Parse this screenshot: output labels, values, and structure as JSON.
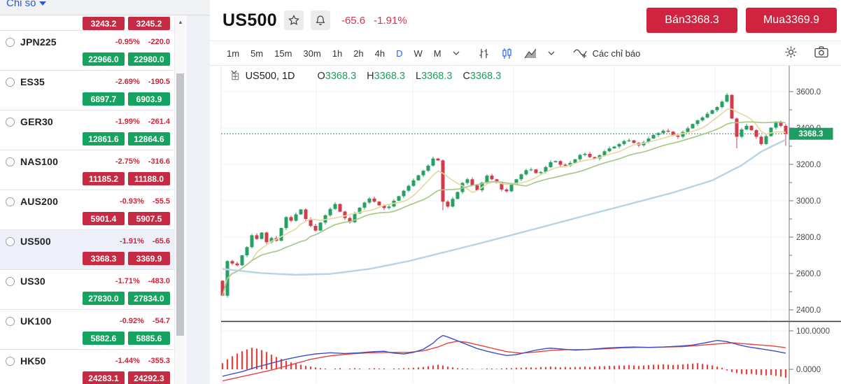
{
  "watchlist": {
    "header": {
      "label": "Chỉ số"
    },
    "partial_row": {
      "bid": "3243.2",
      "ask": "3245.2",
      "trend": "down"
    },
    "items": [
      {
        "symbol": "JPN225",
        "change_pct": "-0.95%",
        "change": "-220.0",
        "bid": "22966.0",
        "ask": "22980.0",
        "trend": "up",
        "selected": false
      },
      {
        "symbol": "ES35",
        "change_pct": "-2.69%",
        "change": "-190.5",
        "bid": "6897.7",
        "ask": "6903.9",
        "trend": "up",
        "selected": false
      },
      {
        "symbol": "GER30",
        "change_pct": "-1.99%",
        "change": "-261.4",
        "bid": "12861.6",
        "ask": "12864.6",
        "trend": "up",
        "selected": false
      },
      {
        "symbol": "NAS100",
        "change_pct": "-2.75%",
        "change": "-316.6",
        "bid": "11185.2",
        "ask": "11188.0",
        "trend": "down",
        "selected": false
      },
      {
        "symbol": "AUS200",
        "change_pct": "-0.93%",
        "change": "-55.5",
        "bid": "5901.4",
        "ask": "5907.5",
        "trend": "down",
        "selected": false
      },
      {
        "symbol": "US500",
        "change_pct": "-1.91%",
        "change": "-65.6",
        "bid": "3368.3",
        "ask": "3369.9",
        "trend": "down",
        "selected": true
      },
      {
        "symbol": "US30",
        "change_pct": "-1.71%",
        "change": "-483.0",
        "bid": "27830.0",
        "ask": "27834.0",
        "trend": "up",
        "selected": false
      },
      {
        "symbol": "UK100",
        "change_pct": "-0.92%",
        "change": "-54.7",
        "bid": "5882.6",
        "ask": "5885.6",
        "trend": "up",
        "selected": false
      },
      {
        "symbol": "HK50",
        "change_pct": "-1.44%",
        "change": "-355.3",
        "bid": "24283.1",
        "ask": "24292.3",
        "trend": "down",
        "selected": false
      }
    ]
  },
  "header": {
    "symbol": "US500",
    "change": "-65.6",
    "change_pct": "-1.91%",
    "sell_label": "Bán",
    "sell_price": "3368.3",
    "buy_label": "Mua",
    "buy_price": "3369.9"
  },
  "toolbar": {
    "timeframes": [
      "1m",
      "5m",
      "15m",
      "30m",
      "1h",
      "2h",
      "4h",
      "D",
      "W",
      "M"
    ],
    "active_timeframe": "D",
    "indicators_label": "Các chỉ báo"
  },
  "legend": {
    "symbol_text": "US500, 1D",
    "ohlc": [
      {
        "label": "O",
        "value": "3368.3"
      },
      {
        "label": "H",
        "value": "3368.3"
      },
      {
        "label": "L",
        "value": "3368.3"
      },
      {
        "label": "C",
        "value": "3368.3"
      }
    ]
  },
  "chart_data": {
    "type": "candlestick",
    "symbol": "US500",
    "timeframe": "1D",
    "price_axis": {
      "tick_labels": [
        "3600.0",
        "3400.0",
        "3200.0",
        "3000.0",
        "2800.0",
        "2600.0",
        "2400.0"
      ],
      "minor_step": 100,
      "min": 2400,
      "max": 3600
    },
    "last_price": 3368.3,
    "last_price_label": "3368.3",
    "first_open": 2560,
    "closes": [
      2478,
      2668,
      2655,
      2645,
      2700,
      2745,
      2810,
      2790,
      2825,
      2772,
      2795,
      2780,
      2850,
      2910,
      2890,
      2925,
      2952,
      2900,
      2862,
      2836,
      2880,
      2920,
      2955,
      2982,
      2940,
      2905,
      2882,
      2930,
      2962,
      2990,
      3012,
      2995,
      2975,
      2960,
      2968,
      3000,
      3025,
      3055,
      3082,
      3112,
      3140,
      3165,
      3193,
      3232,
      3222,
      2995,
      2968,
      3010,
      3048,
      3098,
      3118,
      3085,
      3058,
      3100,
      3138,
      3118,
      3098,
      3062,
      3052,
      3088,
      3118,
      3145,
      3168,
      3172,
      3152,
      3158,
      3185,
      3212,
      3218,
      3198,
      3192,
      3208,
      3228,
      3252,
      3258,
      3240,
      3232,
      3250,
      3272,
      3288,
      3298,
      3312,
      3328,
      3332,
      3318,
      3305,
      3322,
      3342,
      3362,
      3372,
      3385,
      3380,
      3358,
      3352,
      3378,
      3398,
      3422,
      3442,
      3458,
      3478,
      3498,
      3515,
      3545,
      3582,
      3452,
      3352,
      3392,
      3412,
      3388,
      3352,
      3312,
      3355,
      3402,
      3432,
      3412,
      3368.3
    ],
    "overrides": {
      "45": {
        "low": 2948
      },
      "105": {
        "low": 3288
      },
      "115": {
        "low": 3302
      }
    },
    "moving_averages": [
      {
        "name": "ma-short",
        "period": 7,
        "color": "#e8d9a3"
      },
      {
        "name": "ma-mid",
        "period": 18,
        "color": "#a9c98a"
      },
      {
        "name": "ma-long",
        "color": "#b7d3e6",
        "points": [
          [
            0,
            2625
          ],
          [
            8,
            2602
          ],
          [
            15,
            2592
          ],
          [
            22,
            2598
          ],
          [
            30,
            2625
          ],
          [
            38,
            2668
          ],
          [
            45,
            2715
          ],
          [
            52,
            2762
          ],
          [
            60,
            2818
          ],
          [
            68,
            2875
          ],
          [
            76,
            2932
          ],
          [
            84,
            2988
          ],
          [
            92,
            3045
          ],
          [
            100,
            3112
          ],
          [
            106,
            3195
          ],
          [
            110,
            3270
          ],
          [
            113,
            3310
          ],
          [
            115,
            3335
          ]
        ]
      }
    ],
    "indicator": {
      "tick_labels": [
        "100.0000",
        "0.0000"
      ],
      "range": [
        0,
        100
      ],
      "histogram_color": "#e8413e",
      "fast_color": "#3f4ec7",
      "slow_color": "#e84141",
      "histogram": [
        16,
        26,
        34,
        41,
        47,
        52,
        56,
        54,
        50,
        45,
        38,
        32,
        27,
        22,
        18,
        15,
        12,
        9,
        7,
        5,
        3,
        2,
        0,
        2,
        3,
        0,
        2,
        3,
        2,
        0,
        2,
        3,
        2,
        2,
        0,
        2,
        2,
        3,
        3,
        4,
        5,
        6,
        8,
        10,
        12,
        10,
        7,
        5,
        3,
        2,
        2,
        1,
        0,
        1,
        2,
        2,
        1,
        2,
        3,
        3,
        4,
        4,
        5,
        5,
        4,
        6,
        6,
        7,
        6,
        5,
        6,
        5,
        6,
        6,
        7,
        6,
        7,
        8,
        8,
        9,
        9,
        10,
        10,
        11,
        10,
        9,
        10,
        11,
        12,
        12,
        13,
        12,
        11,
        12,
        13,
        14,
        15,
        16,
        14,
        12,
        10,
        7,
        4,
        -3,
        -7,
        -10,
        -12,
        -13,
        -12,
        -14,
        -15,
        -16,
        -15,
        -17,
        -19,
        -22
      ],
      "fast_line": [
        [
          0,
          -18
        ],
        [
          4,
          -6
        ],
        [
          7,
          6
        ],
        [
          10,
          16
        ],
        [
          13,
          26
        ],
        [
          16,
          34
        ],
        [
          19,
          40
        ],
        [
          22,
          43
        ],
        [
          25,
          41
        ],
        [
          28,
          43
        ],
        [
          31,
          46
        ],
        [
          33,
          47
        ],
        [
          35,
          42
        ],
        [
          37,
          40
        ],
        [
          39,
          44
        ],
        [
          41,
          52
        ],
        [
          43,
          68
        ],
        [
          44,
          80
        ],
        [
          45,
          88
        ],
        [
          46,
          84
        ],
        [
          48,
          74
        ],
        [
          50,
          64
        ],
        [
          52,
          54
        ],
        [
          54,
          47
        ],
        [
          56,
          41
        ],
        [
          58,
          36
        ],
        [
          60,
          38
        ],
        [
          62,
          44
        ],
        [
          64,
          50
        ],
        [
          66,
          54
        ],
        [
          67,
          55
        ],
        [
          69,
          53
        ],
        [
          72,
          50
        ],
        [
          75,
          52
        ],
        [
          78,
          55
        ],
        [
          81,
          57
        ],
        [
          84,
          58
        ],
        [
          87,
          57
        ],
        [
          90,
          58
        ],
        [
          93,
          60
        ],
        [
          96,
          63
        ],
        [
          99,
          70
        ],
        [
          101,
          75
        ],
        [
          103,
          72
        ],
        [
          105,
          65
        ],
        [
          107,
          59
        ],
        [
          109,
          55
        ],
        [
          111,
          51
        ],
        [
          113,
          47
        ],
        [
          115,
          42
        ]
      ],
      "slow_line": [
        [
          0,
          -30
        ],
        [
          5,
          -16
        ],
        [
          10,
          -2
        ],
        [
          14,
          12
        ],
        [
          18,
          26
        ],
        [
          22,
          35
        ],
        [
          26,
          40
        ],
        [
          30,
          43
        ],
        [
          34,
          44
        ],
        [
          38,
          44
        ],
        [
          41,
          48
        ],
        [
          44,
          58
        ],
        [
          46,
          68
        ],
        [
          48,
          73
        ],
        [
          50,
          70
        ],
        [
          52,
          64
        ],
        [
          55,
          55
        ],
        [
          58,
          46
        ],
        [
          61,
          42
        ],
        [
          64,
          45
        ],
        [
          67,
          49
        ],
        [
          70,
          51
        ],
        [
          73,
          51
        ],
        [
          76,
          52
        ],
        [
          79,
          54
        ],
        [
          82,
          56
        ],
        [
          85,
          57
        ],
        [
          88,
          57
        ],
        [
          91,
          58
        ],
        [
          94,
          59
        ],
        [
          97,
          62
        ],
        [
          100,
          65
        ],
        [
          102,
          67
        ],
        [
          104,
          69
        ],
        [
          106,
          67
        ],
        [
          108,
          65
        ],
        [
          110,
          63
        ],
        [
          112,
          61
        ],
        [
          114,
          58
        ],
        [
          115,
          56
        ]
      ]
    }
  },
  "colors": {
    "candle_up": "#26a164",
    "candle_down": "#d23b4c",
    "grid": "#edf0f5",
    "axis_line": "#757575",
    "axis_text": "#45494e",
    "price_tag": "#1d9d61",
    "price_line": "#1d9d61",
    "pane_separator": "#2f3640",
    "accent_blue": "#2962ff",
    "sell_buy_red": "#cf2340",
    "quote_green": "#15a45f",
    "quote_red": "#c62b43",
    "negative_text": "#cf2438"
  }
}
